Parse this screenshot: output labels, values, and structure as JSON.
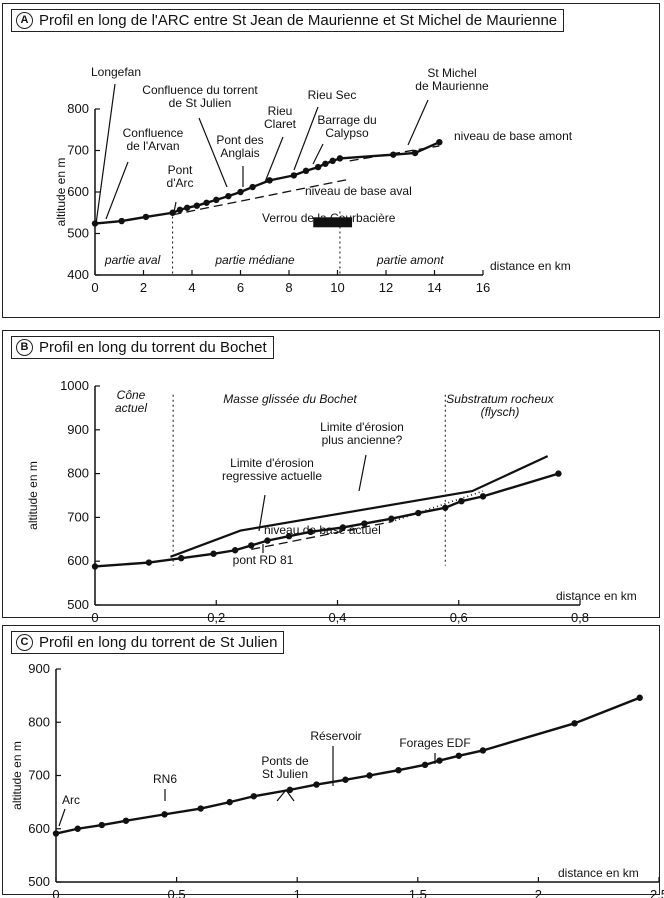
{
  "chart_data": [
    {
      "type": "line",
      "panel_letter": "A",
      "title": "Profil en long de l'ARC entre St Jean de Maurienne et St Michel de Maurienne",
      "xlabel": "distance en km",
      "ylabel": "altitude en m",
      "xlim": [
        0,
        16
      ],
      "ylim": [
        400,
        800
      ],
      "x_ticks": [
        "0",
        "2",
        "4",
        "6",
        "8",
        "10",
        "12",
        "14",
        "16"
      ],
      "y_ticks": [
        "400",
        "500",
        "600",
        "700",
        "800"
      ],
      "series": [
        {
          "x": [
            0,
            1.1,
            2.1,
            3.2,
            3.5,
            3.8,
            4.2,
            4.6,
            5.0,
            5.5,
            6.0,
            6.5,
            7.2,
            8.2,
            8.7,
            9.2,
            9.5,
            9.8,
            10.1,
            12.3,
            13.2,
            14.2
          ],
          "y": [
            524,
            530,
            540,
            550,
            557,
            562,
            567,
            574,
            581,
            590,
            600,
            612,
            628,
            640,
            651,
            660,
            668,
            675,
            681,
            690,
            694,
            720
          ]
        }
      ],
      "reference_lines": [
        {
          "label": "niveau de base aval",
          "x": [
            3.2,
            10.5
          ],
          "y": [
            545,
            631
          ]
        },
        {
          "label": "niveau de base amont",
          "x": [
            10.5,
            14.2
          ],
          "y": [
            675,
            711
          ]
        }
      ],
      "annotations": [
        "Longefan",
        "Confluence de l'Arvan",
        "Confluence du torrent de St Julien",
        "Pont d'Arc",
        "Pont des Anglais",
        "Rieu Claret",
        "Rieu Sec",
        "Barrage du Calypso",
        "St Michel de Maurienne",
        "niveau de base amont",
        "niveau de base aval",
        "Verrou de la Courbacière"
      ],
      "verrou_bar": {
        "x": [
          9.0,
          10.6
        ],
        "y": 527
      },
      "zones": [
        {
          "label": "partie aval",
          "x_start": 0,
          "x_end": 3.2
        },
        {
          "label": "partie médiane",
          "x_start": 3.2,
          "x_end": 10.1
        },
        {
          "label": "partie amont",
          "x_start": 10.1,
          "x_end": 16
        }
      ]
    },
    {
      "type": "line",
      "panel_letter": "B",
      "title": "Profil en long du torrent du Bochet",
      "xlabel": "distance en km",
      "ylabel": "altitude en m",
      "xlim": [
        0,
        0.9
      ],
      "ylim": [
        500,
        1000
      ],
      "x_ticks": [
        "0",
        "0,2",
        "0,4",
        "0,6",
        "0,8"
      ],
      "y_ticks": [
        "500",
        "600",
        "700",
        "800",
        "900",
        "1000"
      ],
      "series": [
        {
          "x": [
            0,
            0.1,
            0.16,
            0.22,
            0.26,
            0.29,
            0.32,
            0.36,
            0.4,
            0.46,
            0.5,
            0.55,
            0.6,
            0.65,
            0.68,
            0.72,
            0.86
          ],
          "y": [
            588,
            597,
            607,
            617,
            625,
            636,
            647,
            657,
            667,
            677,
            686,
            697,
            710,
            722,
            737,
            748,
            800
          ]
        }
      ],
      "erosion_limits": [
        {
          "x": [
            0.14,
            0.27,
            0.7,
            0.84
          ],
          "y": [
            610,
            670,
            760,
            840
          ]
        },
        {
          "x": [
            0.14,
            0.27,
            0.7,
            0.84
          ],
          "y": [
            610,
            670,
            760,
            840
          ]
        }
      ],
      "base_level_line": {
        "label": "niveau de base actuel",
        "x": [
          0.29,
          0.72
        ],
        "y": [
          627,
          760
        ]
      },
      "annotations": [
        "Cône actuel",
        "Masse glissée du Bochet",
        "Substratum rocheux (flysch)",
        "Limite d'érosion regressive actuelle",
        "Limite d'érosion plus ancienne?",
        "niveau de base actuel",
        "pont RD 81"
      ],
      "zone_bounds": [
        0.145,
        0.65
      ]
    },
    {
      "type": "line",
      "panel_letter": "C",
      "title": "Profil en long du torrent de St Julien",
      "xlabel": "distance en km",
      "ylabel": "altitude en m",
      "xlim": [
        0,
        2.5
      ],
      "ylim": [
        500,
        900
      ],
      "x_ticks": [
        "0",
        "0,5",
        "1",
        "1.5",
        "2",
        "2.5"
      ],
      "y_ticks": [
        "500",
        "600",
        "700",
        "800",
        "900"
      ],
      "series": [
        {
          "x": [
            0,
            0.09,
            0.19,
            0.29,
            0.45,
            0.6,
            0.72,
            0.82,
            0.97,
            1.08,
            1.2,
            1.3,
            1.42,
            1.53,
            1.59,
            1.67,
            1.77,
            2.15,
            2.42
          ],
          "y": [
            591,
            600,
            607,
            615,
            627,
            638,
            650,
            661,
            673,
            683,
            692,
            700,
            710,
            720,
            728,
            737,
            747,
            798,
            846
          ]
        }
      ],
      "annotations": [
        "Arc",
        "RN6",
        "Ponts de St Julien",
        "Réservoir",
        "Forages EDF"
      ]
    }
  ]
}
